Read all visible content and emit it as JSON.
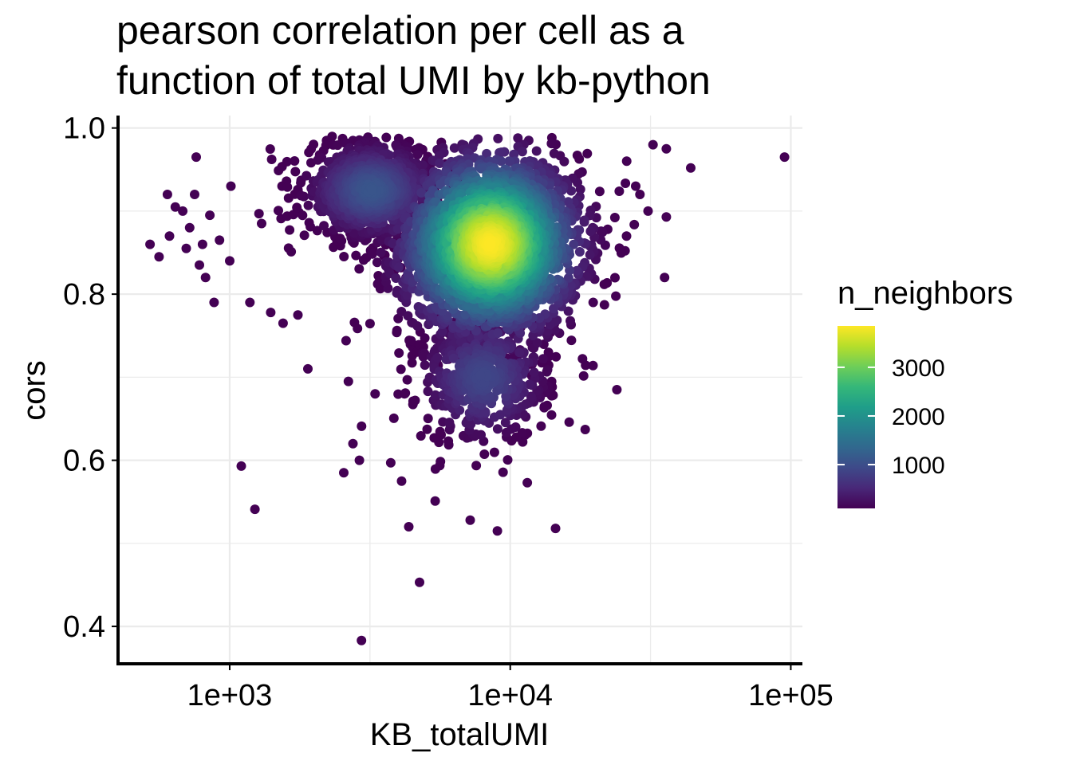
{
  "chart_data": {
    "type": "scatter",
    "title": [
      "pearson correlation per cell as a",
      "function of total UMI by kb-python"
    ],
    "xlabel": "KB_totalUMI",
    "ylabel": "cors",
    "x_scale": "log10",
    "xlim": [
      400,
      110000
    ],
    "ylim": [
      0.355,
      1.015
    ],
    "x_ticks": [
      1000,
      10000,
      100000
    ],
    "x_tick_labels": [
      "1e+03",
      "1e+04",
      "1e+05"
    ],
    "y_ticks": [
      0.4,
      0.6,
      0.8,
      1.0
    ],
    "y_tick_labels": [
      "0.4",
      "0.6",
      "0.8",
      "1.0"
    ],
    "grid": true,
    "legend": {
      "title": "n_neighbors",
      "placement": "right",
      "range": [
        100,
        3850
      ],
      "breaks": [
        1000,
        2000,
        3000
      ],
      "break_labels": [
        "1000",
        "2000",
        "3000"
      ],
      "colormap": "viridis",
      "colors": [
        "#440154",
        "#482878",
        "#3e4989",
        "#31688e",
        "#26828e",
        "#1f9e89",
        "#35b779",
        "#6ece58",
        "#b5de2b",
        "#fde725"
      ]
    },
    "clusters": [
      {
        "name": "main",
        "x_center": 8500,
        "y_center": 0.86,
        "x_sd_log10": 0.16,
        "y_sd": 0.055,
        "n": 2600,
        "peak_neighbors": 3850
      },
      {
        "name": "upper-left",
        "x_center": 3200,
        "y_center": 0.925,
        "x_sd_log10": 0.12,
        "y_sd": 0.03,
        "n": 900,
        "peak_neighbors": 1100
      },
      {
        "name": "lower-tail",
        "x_center": 8000,
        "y_center": 0.7,
        "x_sd_log10": 0.12,
        "y_sd": 0.04,
        "n": 500,
        "peak_neighbors": 900
      }
    ],
    "outliers": [
      {
        "x": 520,
        "y": 0.86
      },
      {
        "x": 560,
        "y": 0.845
      },
      {
        "x": 600,
        "y": 0.92
      },
      {
        "x": 610,
        "y": 0.87
      },
      {
        "x": 640,
        "y": 0.905
      },
      {
        "x": 680,
        "y": 0.9
      },
      {
        "x": 700,
        "y": 0.855
      },
      {
        "x": 720,
        "y": 0.88
      },
      {
        "x": 750,
        "y": 0.92
      },
      {
        "x": 760,
        "y": 0.965
      },
      {
        "x": 780,
        "y": 0.835
      },
      {
        "x": 800,
        "y": 0.86
      },
      {
        "x": 820,
        "y": 0.82
      },
      {
        "x": 850,
        "y": 0.895
      },
      {
        "x": 880,
        "y": 0.79
      },
      {
        "x": 920,
        "y": 0.865
      },
      {
        "x": 1000,
        "y": 0.84
      },
      {
        "x": 1010,
        "y": 0.93
      },
      {
        "x": 1100,
        "y": 0.593
      },
      {
        "x": 1180,
        "y": 0.79
      },
      {
        "x": 1230,
        "y": 0.541
      },
      {
        "x": 1300,
        "y": 0.885
      },
      {
        "x": 1400,
        "y": 0.778
      },
      {
        "x": 1550,
        "y": 0.765
      },
      {
        "x": 1750,
        "y": 0.775
      },
      {
        "x": 1900,
        "y": 0.71
      },
      {
        "x": 2550,
        "y": 0.585
      },
      {
        "x": 2650,
        "y": 0.695
      },
      {
        "x": 2750,
        "y": 0.62
      },
      {
        "x": 2900,
        "y": 0.6
      },
      {
        "x": 2950,
        "y": 0.383
      },
      {
        "x": 3300,
        "y": 0.68
      },
      {
        "x": 3750,
        "y": 0.597
      },
      {
        "x": 4100,
        "y": 0.575
      },
      {
        "x": 4350,
        "y": 0.52
      },
      {
        "x": 4750,
        "y": 0.453
      },
      {
        "x": 5400,
        "y": 0.551
      },
      {
        "x": 7200,
        "y": 0.528
      },
      {
        "x": 9000,
        "y": 0.515
      },
      {
        "x": 11500,
        "y": 0.573
      },
      {
        "x": 14500,
        "y": 0.518
      },
      {
        "x": 18500,
        "y": 0.637
      },
      {
        "x": 24000,
        "y": 0.685
      },
      {
        "x": 29000,
        "y": 0.92
      },
      {
        "x": 35500,
        "y": 0.82
      },
      {
        "x": 36000,
        "y": 0.893
      },
      {
        "x": 36000,
        "y": 0.975
      },
      {
        "x": 44000,
        "y": 0.952
      },
      {
        "x": 95000,
        "y": 0.965
      },
      {
        "x": 26000,
        "y": 0.96
      },
      {
        "x": 28000,
        "y": 0.93
      },
      {
        "x": 31000,
        "y": 0.9
      }
    ]
  }
}
